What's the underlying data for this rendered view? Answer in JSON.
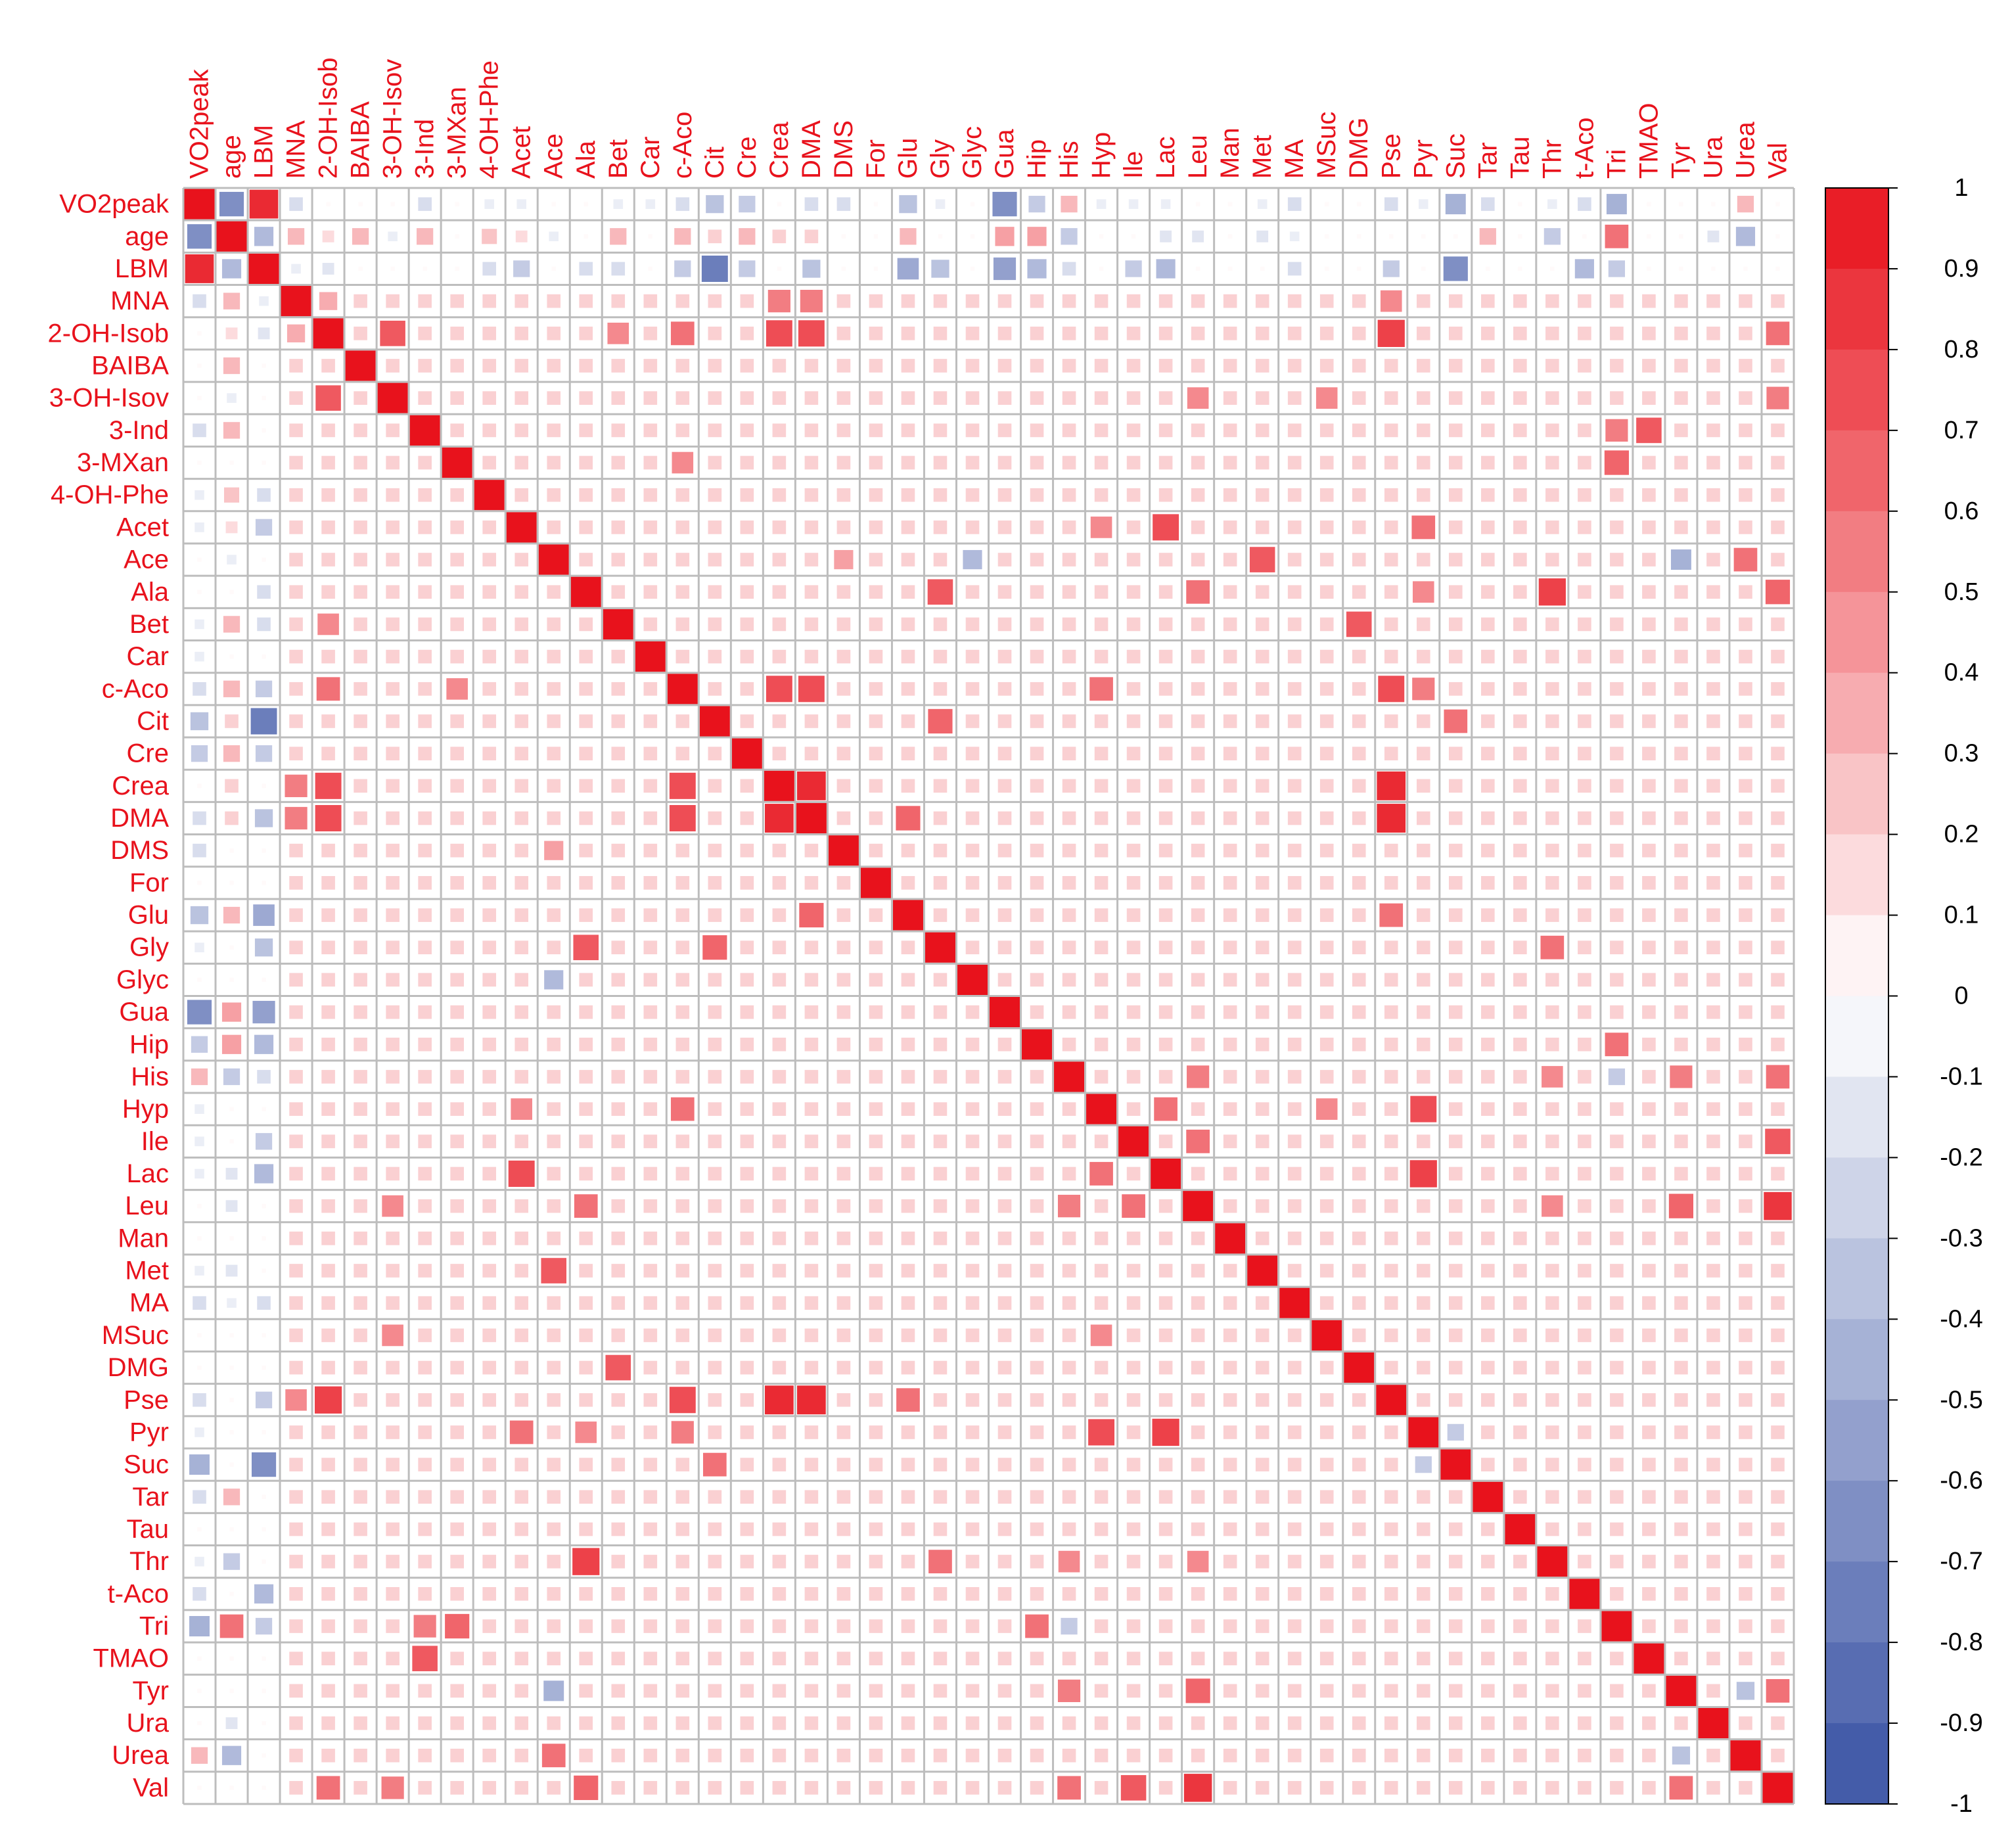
{
  "chart_data": {
    "type": "heatmap",
    "subtype": "correlation-matrix",
    "marker": "square",
    "variables": [
      "VO2peak",
      "age",
      "LBM",
      "MNA",
      "2-OH-Isob",
      "BAIBA",
      "3-OH-Isov",
      "3-Ind",
      "3-MXan",
      "4-OH-Phe",
      "Acet",
      "Ace",
      "Ala",
      "Bet",
      "Car",
      "c-Aco",
      "Cit",
      "Cre",
      "Crea",
      "DMA",
      "DMS",
      "For",
      "Glu",
      "Gly",
      "Glyc",
      "Gua",
      "Hip",
      "His",
      "Hyp",
      "Ile",
      "Lac",
      "Leu",
      "Man",
      "Met",
      "MA",
      "MSuc",
      "DMG",
      "Pse",
      "Pyr",
      "Suc",
      "Tar",
      "Tau",
      "Thr",
      "t-Aco",
      "Tri",
      "TMAO",
      "Tyr",
      "Ura",
      "Urea",
      "Val"
    ],
    "colorbar": {
      "range": [
        -1,
        1
      ],
      "ticks": [
        "1",
        "0.9",
        "0.8",
        "0.7",
        "0.6",
        "0.5",
        "0.4",
        "0.3",
        "0.2",
        "0.1",
        "0",
        "-0.1",
        "-0.2",
        "-0.3",
        "-0.4",
        "-0.5",
        "-0.6",
        "-0.7",
        "-0.8",
        "-0.9",
        "-1"
      ],
      "low_color": "#3a53a4",
      "mid_color": "#ffffff",
      "high_color": "#e8121c"
    },
    "default_correlation": 0.2,
    "default_correlation_first_three": 0.02,
    "correlations": [
      [
        "VO2peak",
        "age",
        -0.65
      ],
      [
        "VO2peak",
        "LBM",
        0.9
      ],
      [
        "VO2peak",
        "MNA",
        -0.2
      ],
      [
        "VO2peak",
        "3-Ind",
        -0.2
      ],
      [
        "VO2peak",
        "4-OH-Phe",
        -0.1
      ],
      [
        "VO2peak",
        "Acet",
        -0.1
      ],
      [
        "VO2peak",
        "Bet",
        -0.1
      ],
      [
        "VO2peak",
        "Car",
        -0.1
      ],
      [
        "VO2peak",
        "c-Aco",
        -0.2
      ],
      [
        "VO2peak",
        "Cit",
        -0.35
      ],
      [
        "VO2peak",
        "Cre",
        -0.3
      ],
      [
        "VO2peak",
        "DMA",
        -0.2
      ],
      [
        "VO2peak",
        "DMS",
        -0.2
      ],
      [
        "VO2peak",
        "Glu",
        -0.35
      ],
      [
        "VO2peak",
        "Gly",
        -0.1
      ],
      [
        "VO2peak",
        "Gua",
        -0.65
      ],
      [
        "VO2peak",
        "Hip",
        -0.3
      ],
      [
        "VO2peak",
        "His",
        0.3
      ],
      [
        "VO2peak",
        "Hyp",
        -0.1
      ],
      [
        "VO2peak",
        "Ile",
        -0.1
      ],
      [
        "VO2peak",
        "Lac",
        -0.1
      ],
      [
        "VO2peak",
        "Met",
        -0.1
      ],
      [
        "VO2peak",
        "MA",
        -0.2
      ],
      [
        "VO2peak",
        "Pse",
        -0.2
      ],
      [
        "VO2peak",
        "Pyr",
        -0.1
      ],
      [
        "VO2peak",
        "Suc",
        -0.45
      ],
      [
        "VO2peak",
        "Tar",
        -0.2
      ],
      [
        "VO2peak",
        "Thr",
        -0.1
      ],
      [
        "VO2peak",
        "t-Aco",
        -0.2
      ],
      [
        "VO2peak",
        "Tri",
        -0.45
      ],
      [
        "VO2peak",
        "Urea",
        0.3
      ],
      [
        "age",
        "LBM",
        -0.4
      ],
      [
        "age",
        "MNA",
        0.3
      ],
      [
        "age",
        "2-OH-Isob",
        0.15
      ],
      [
        "age",
        "BAIBA",
        0.3
      ],
      [
        "age",
        "3-OH-Isov",
        -0.1
      ],
      [
        "age",
        "3-Ind",
        0.3
      ],
      [
        "age",
        "4-OH-Phe",
        0.25
      ],
      [
        "age",
        "Acet",
        0.15
      ],
      [
        "age",
        "Ace",
        -0.1
      ],
      [
        "age",
        "Bet",
        0.3
      ],
      [
        "age",
        "c-Aco",
        0.3
      ],
      [
        "age",
        "Cit",
        0.2
      ],
      [
        "age",
        "Cre",
        0.3
      ],
      [
        "age",
        "Crea",
        0.2
      ],
      [
        "age",
        "DMA",
        0.2
      ],
      [
        "age",
        "Glu",
        0.3
      ],
      [
        "age",
        "Gua",
        0.4
      ],
      [
        "age",
        "Hip",
        0.4
      ],
      [
        "age",
        "His",
        -0.3
      ],
      [
        "age",
        "Lac",
        -0.15
      ],
      [
        "age",
        "Leu",
        -0.15
      ],
      [
        "age",
        "Met",
        -0.15
      ],
      [
        "age",
        "MA",
        -0.1
      ],
      [
        "age",
        "Tar",
        0.3
      ],
      [
        "age",
        "Thr",
        -0.3
      ],
      [
        "age",
        "Tri",
        0.6
      ],
      [
        "age",
        "Ura",
        -0.15
      ],
      [
        "age",
        "Urea",
        -0.4
      ],
      [
        "LBM",
        "MNA",
        -0.1
      ],
      [
        "LBM",
        "2-OH-Isob",
        -0.15
      ],
      [
        "LBM",
        "4-OH-Phe",
        -0.2
      ],
      [
        "LBM",
        "Acet",
        -0.3
      ],
      [
        "LBM",
        "Ala",
        -0.2
      ],
      [
        "LBM",
        "Bet",
        -0.2
      ],
      [
        "LBM",
        "c-Aco",
        -0.3
      ],
      [
        "LBM",
        "Cit",
        -0.75
      ],
      [
        "LBM",
        "Cre",
        -0.3
      ],
      [
        "LBM",
        "DMA",
        -0.35
      ],
      [
        "LBM",
        "Glu",
        -0.5
      ],
      [
        "LBM",
        "Gly",
        -0.35
      ],
      [
        "LBM",
        "Gua",
        -0.55
      ],
      [
        "LBM",
        "Hip",
        -0.4
      ],
      [
        "LBM",
        "His",
        -0.2
      ],
      [
        "LBM",
        "Ile",
        -0.3
      ],
      [
        "LBM",
        "Lac",
        -0.4
      ],
      [
        "LBM",
        "MA",
        -0.2
      ],
      [
        "LBM",
        "Pse",
        -0.3
      ],
      [
        "LBM",
        "Suc",
        -0.65
      ],
      [
        "LBM",
        "t-Aco",
        -0.4
      ],
      [
        "LBM",
        "Tri",
        -0.3
      ],
      [
        "2-OH-Isob",
        "Crea",
        0.75
      ],
      [
        "2-OH-Isob",
        "DMA",
        0.75
      ],
      [
        "2-OH-Isob",
        "Pse",
        0.8
      ],
      [
        "2-OH-Isob",
        "3-OH-Isov",
        0.7
      ],
      [
        "2-OH-Isob",
        "c-Aco",
        0.6
      ],
      [
        "2-OH-Isob",
        "Val",
        0.6
      ],
      [
        "2-OH-Isob",
        "Bet",
        0.5
      ],
      [
        "2-OH-Isob",
        "MNA",
        0.35
      ],
      [
        "MNA",
        "Crea",
        0.55
      ],
      [
        "MNA",
        "DMA",
        0.55
      ],
      [
        "MNA",
        "Pse",
        0.5
      ],
      [
        "3-OH-Isov",
        "MSuc",
        0.5
      ],
      [
        "3-OH-Isov",
        "Val",
        0.55
      ],
      [
        "3-OH-Isov",
        "Leu",
        0.5
      ],
      [
        "3-Ind",
        "TMAO",
        0.7
      ],
      [
        "3-Ind",
        "Tri",
        0.55
      ],
      [
        "3-MXan",
        "Tri",
        0.65
      ],
      [
        "3-MXan",
        "c-Aco",
        0.5
      ],
      [
        "Acet",
        "Lac",
        0.75
      ],
      [
        "Acet",
        "Pyr",
        0.6
      ],
      [
        "Acet",
        "Hyp",
        0.5
      ],
      [
        "Ace",
        "Met",
        0.7
      ],
      [
        "Ace",
        "Urea",
        0.6
      ],
      [
        "Ace",
        "DMS",
        0.4
      ],
      [
        "Ace",
        "Glyc",
        -0.4
      ],
      [
        "Ace",
        "Tyr",
        -0.45
      ],
      [
        "Ala",
        "Gly",
        0.7
      ],
      [
        "Ala",
        "Thr",
        0.8
      ],
      [
        "Ala",
        "Leu",
        0.6
      ],
      [
        "Ala",
        "Val",
        0.65
      ],
      [
        "Ala",
        "Pyr",
        0.5
      ],
      [
        "Bet",
        "DMG",
        0.7
      ],
      [
        "c-Aco",
        "Crea",
        0.75
      ],
      [
        "c-Aco",
        "DMA",
        0.75
      ],
      [
        "c-Aco",
        "Pse",
        0.75
      ],
      [
        "c-Aco",
        "Hyp",
        0.6
      ],
      [
        "c-Aco",
        "Pyr",
        0.55
      ],
      [
        "Cit",
        "Gly",
        0.65
      ],
      [
        "Cit",
        "Suc",
        0.6
      ],
      [
        "Crea",
        "DMA",
        0.9
      ],
      [
        "Crea",
        "Pse",
        0.9
      ],
      [
        "DMA",
        "Pse",
        0.9
      ],
      [
        "DMA",
        "Glu",
        0.65
      ],
      [
        "Glu",
        "Pse",
        0.6
      ],
      [
        "Gly",
        "Thr",
        0.6
      ],
      [
        "Hip",
        "Tri",
        0.6
      ],
      [
        "His",
        "Tyr",
        0.55
      ],
      [
        "His",
        "Val",
        0.6
      ],
      [
        "His",
        "Leu",
        0.55
      ],
      [
        "His",
        "Thr",
        0.5
      ],
      [
        "His",
        "Tri",
        -0.3
      ],
      [
        "Hyp",
        "Lac",
        0.6
      ],
      [
        "Hyp",
        "Pyr",
        0.75
      ],
      [
        "Hyp",
        "MSuc",
        0.5
      ],
      [
        "Ile",
        "Leu",
        0.6
      ],
      [
        "Ile",
        "Val",
        0.7
      ],
      [
        "Lac",
        "Pyr",
        0.8
      ],
      [
        "Leu",
        "Val",
        0.85
      ],
      [
        "Leu",
        "Tyr",
        0.65
      ],
      [
        "Leu",
        "Thr",
        0.5
      ],
      [
        "Pyr",
        "Suc",
        -0.3
      ],
      [
        "Tyr",
        "Val",
        0.6
      ],
      [
        "Tyr",
        "Urea",
        -0.35
      ]
    ]
  }
}
